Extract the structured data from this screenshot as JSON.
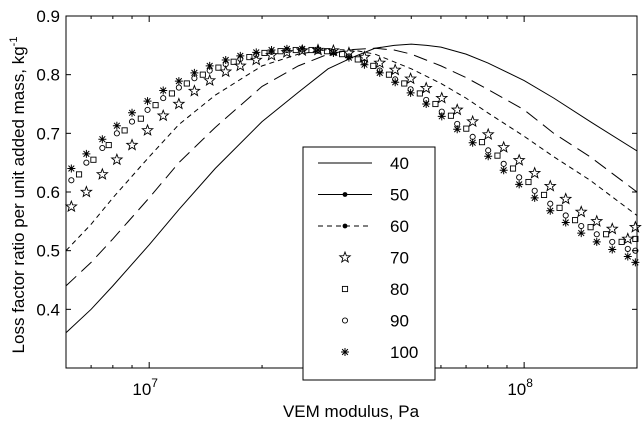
{
  "chart_data": {
    "type": "line",
    "xlabel": "VEM modulus, Pa",
    "ylabel": "Loss factor ratio per unit added mass, kg",
    "ylabel_sup": "-1",
    "x_scale": "log",
    "xlim": [
      6000000,
      200000000
    ],
    "ylim": [
      0.3,
      0.9
    ],
    "x_tick_labels": [
      {
        "value": 10000000,
        "base": "10",
        "exp": "7"
      },
      {
        "value": 100000000,
        "base": "10",
        "exp": "8"
      }
    ],
    "y_ticks": [
      0.4,
      0.5,
      0.6,
      0.7,
      0.8,
      0.9
    ],
    "y_tick_labels": [
      "0.4",
      "0.5",
      "0.6",
      "0.7",
      "0.8",
      "0.9"
    ],
    "grid": false,
    "legend_position": "center",
    "series": [
      {
        "name": "40",
        "style": "solid",
        "x": [
          6000000,
          7000000,
          8000000,
          10000000,
          12000000,
          15000000,
          20000000,
          25000000,
          30000000,
          35000000,
          40000000,
          45000000,
          50000000,
          55000000,
          60000000,
          70000000,
          80000000,
          100000000,
          120000000,
          150000000,
          200000000
        ],
        "y": [
          0.36,
          0.4,
          0.44,
          0.51,
          0.57,
          0.64,
          0.72,
          0.77,
          0.81,
          0.83,
          0.845,
          0.85,
          0.852,
          0.85,
          0.847,
          0.835,
          0.82,
          0.79,
          0.76,
          0.72,
          0.67
        ]
      },
      {
        "name": "50",
        "style": "long-dash",
        "x": [
          6000000,
          7000000,
          8000000,
          10000000,
          12000000,
          15000000,
          20000000,
          25000000,
          30000000,
          35000000,
          40000000,
          45000000,
          50000000,
          60000000,
          70000000,
          80000000,
          100000000,
          120000000,
          150000000,
          200000000
        ],
        "y": [
          0.44,
          0.48,
          0.52,
          0.59,
          0.65,
          0.71,
          0.78,
          0.815,
          0.835,
          0.843,
          0.845,
          0.842,
          0.835,
          0.815,
          0.795,
          0.775,
          0.74,
          0.7,
          0.66,
          0.6
        ]
      },
      {
        "name": "60",
        "style": "short-dash",
        "x": [
          6000000,
          7000000,
          8000000,
          10000000,
          12000000,
          15000000,
          20000000,
          25000000,
          30000000,
          35000000,
          40000000,
          50000000,
          60000000,
          70000000,
          80000000,
          100000000,
          120000000,
          150000000,
          200000000
        ],
        "y": [
          0.5,
          0.545,
          0.59,
          0.66,
          0.715,
          0.765,
          0.815,
          0.835,
          0.843,
          0.842,
          0.835,
          0.81,
          0.785,
          0.76,
          0.735,
          0.695,
          0.66,
          0.62,
          0.56
        ]
      },
      {
        "name": "70",
        "marker": "star",
        "x": [
          6200000,
          6800000,
          7500000,
          8200000,
          9000000,
          9900000,
          10900000,
          12000000,
          13200000,
          14500000,
          16000000,
          17500000,
          19300000,
          21200000,
          23300000,
          25600000,
          28200000,
          31000000,
          34100000,
          37500000,
          41200000,
          45300000,
          49800000,
          54800000,
          60300000,
          66300000,
          72900000,
          80200000,
          88200000,
          97000000,
          106700000,
          117400000,
          129100000,
          142000000,
          156200000,
          171800000,
          189000000,
          198000000
        ],
        "y": [
          0.575,
          0.6,
          0.63,
          0.655,
          0.68,
          0.705,
          0.73,
          0.75,
          0.772,
          0.79,
          0.805,
          0.815,
          0.825,
          0.833,
          0.838,
          0.841,
          0.842,
          0.841,
          0.837,
          0.83,
          0.82,
          0.808,
          0.793,
          0.777,
          0.76,
          0.74,
          0.72,
          0.698,
          0.676,
          0.654,
          0.632,
          0.61,
          0.588,
          0.566,
          0.55,
          0.537,
          0.52,
          0.54
        ]
      },
      {
        "name": "80",
        "marker": "square",
        "x": [
          5900000,
          6500000,
          7100000,
          7800000,
          8600000,
          9500000,
          10400000,
          11500000,
          12600000,
          13900000,
          15300000,
          16800000,
          18500000,
          20300000,
          22400000,
          24600000,
          27100000,
          29800000,
          32700000,
          36000000,
          39600000,
          43600000,
          47900000,
          52700000,
          58000000,
          63800000,
          70100000,
          77200000,
          84900000,
          93400000,
          102700000,
          113000000,
          124300000,
          136700000,
          150400000,
          165400000,
          182000000,
          198000000
        ],
        "y": [
          0.575,
          0.63,
          0.655,
          0.68,
          0.705,
          0.725,
          0.748,
          0.768,
          0.785,
          0.8,
          0.812,
          0.822,
          0.83,
          0.837,
          0.84,
          0.842,
          0.842,
          0.84,
          0.835,
          0.826,
          0.815,
          0.8,
          0.785,
          0.768,
          0.75,
          0.73,
          0.708,
          0.685,
          0.662,
          0.64,
          0.617,
          0.595,
          0.573,
          0.552,
          0.54,
          0.528,
          0.515,
          0.52
        ]
      },
      {
        "name": "90",
        "marker": "circle",
        "x": [
          6200000,
          6800000,
          7500000,
          8200000,
          9000000,
          9900000,
          10900000,
          12000000,
          13200000,
          14500000,
          16000000,
          17500000,
          19300000,
          21200000,
          23300000,
          25600000,
          28200000,
          31000000,
          34100000,
          37500000,
          41200000,
          45300000,
          49800000,
          54800000,
          60300000,
          66300000,
          72900000,
          80200000,
          88200000,
          97000000,
          106700000,
          117400000,
          129100000,
          142000000,
          156200000,
          171800000,
          189000000,
          198000000
        ],
        "y": [
          0.62,
          0.65,
          0.675,
          0.7,
          0.72,
          0.74,
          0.76,
          0.778,
          0.794,
          0.807,
          0.818,
          0.827,
          0.834,
          0.839,
          0.842,
          0.843,
          0.842,
          0.838,
          0.831,
          0.82,
          0.807,
          0.792,
          0.775,
          0.757,
          0.737,
          0.716,
          0.694,
          0.671,
          0.648,
          0.625,
          0.602,
          0.58,
          0.56,
          0.542,
          0.528,
          0.515,
          0.503,
          0.5
        ]
      },
      {
        "name": "100",
        "marker": "asterisk",
        "x": [
          6200000,
          6800000,
          7500000,
          8200000,
          9000000,
          9900000,
          10900000,
          12000000,
          13200000,
          14500000,
          16000000,
          17500000,
          19300000,
          21200000,
          23300000,
          25600000,
          28200000,
          31000000,
          34100000,
          37500000,
          41200000,
          45300000,
          49800000,
          54800000,
          60300000,
          66300000,
          72900000,
          80200000,
          88200000,
          97000000,
          106700000,
          117400000,
          129100000,
          142000000,
          156200000,
          171800000,
          189000000,
          198000000
        ],
        "y": [
          0.64,
          0.665,
          0.69,
          0.713,
          0.735,
          0.755,
          0.773,
          0.789,
          0.803,
          0.815,
          0.825,
          0.832,
          0.838,
          0.842,
          0.844,
          0.844,
          0.842,
          0.837,
          0.829,
          0.817,
          0.803,
          0.787,
          0.769,
          0.75,
          0.729,
          0.707,
          0.684,
          0.661,
          0.637,
          0.613,
          0.59,
          0.568,
          0.548,
          0.53,
          0.515,
          0.502,
          0.49,
          0.48
        ]
      }
    ]
  }
}
